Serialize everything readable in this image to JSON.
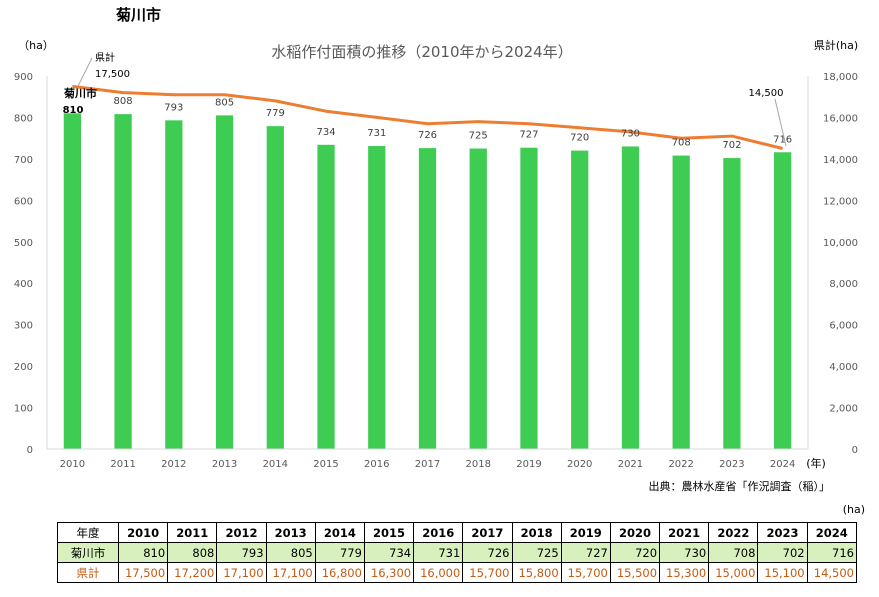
{
  "page_title": "菊川市",
  "source_note": "出典：農林水産省「作況調査（稲）」",
  "table_unit": "(ha)",
  "table": {
    "header_label": "年度",
    "city_label": "菊川市",
    "pref_label": "県計",
    "years": [
      "2010",
      "2011",
      "2012",
      "2013",
      "2014",
      "2015",
      "2016",
      "2017",
      "2018",
      "2019",
      "2020",
      "2021",
      "2022",
      "2023",
      "2024"
    ],
    "city_values": [
      "810",
      "808",
      "793",
      "805",
      "779",
      "734",
      "731",
      "726",
      "725",
      "727",
      "720",
      "730",
      "708",
      "702",
      "716"
    ],
    "pref_values": [
      "17,500",
      "17,200",
      "17,100",
      "17,100",
      "16,800",
      "16,300",
      "16,000",
      "15,700",
      "15,800",
      "15,700",
      "15,500",
      "15,300",
      "15,000",
      "15,100",
      "14,500"
    ]
  },
  "chart_data": {
    "type": "bar+line",
    "title": "水稲作付面積の推移（2010年から2024年）",
    "categories": [
      "2010",
      "2011",
      "2012",
      "2013",
      "2014",
      "2015",
      "2016",
      "2017",
      "2018",
      "2019",
      "2020",
      "2021",
      "2022",
      "2023",
      "2024"
    ],
    "x_unit": "(年)",
    "y_left": {
      "label": "（ha）",
      "min": 0,
      "max": 900,
      "step": 100,
      "ticks": [
        "0",
        "100",
        "200",
        "300",
        "400",
        "500",
        "600",
        "700",
        "800",
        "900"
      ]
    },
    "y_right": {
      "label": "県計(ha)",
      "min": 0,
      "max": 18000,
      "step": 2000,
      "ticks": [
        "0",
        "2,000",
        "4,000",
        "6,000",
        "8,000",
        "10,000",
        "12,000",
        "14,000",
        "16,000",
        "18,000"
      ]
    },
    "series": [
      {
        "name": "菊川市",
        "type": "bar",
        "axis": "left",
        "color": "#3fcc53",
        "values": [
          810,
          808,
          793,
          805,
          779,
          734,
          731,
          726,
          725,
          727,
          720,
          730,
          708,
          702,
          716
        ],
        "labels": [
          "810",
          "808",
          "793",
          "805",
          "779",
          "734",
          "731",
          "726",
          "725",
          "727",
          "720",
          "730",
          "708",
          "702",
          "716"
        ]
      },
      {
        "name": "県計",
        "type": "line",
        "axis": "right",
        "color": "#ed7d31",
        "values": [
          17500,
          17200,
          17100,
          17100,
          16800,
          16300,
          16000,
          15700,
          15800,
          15700,
          15500,
          15300,
          15000,
          15100,
          14500
        ]
      }
    ],
    "annotations": {
      "series1_name": "菊川市",
      "series1_first_value": "810",
      "series2_name": "県計",
      "series2_first_value": "17,500",
      "series2_last_value": "14,500"
    }
  }
}
